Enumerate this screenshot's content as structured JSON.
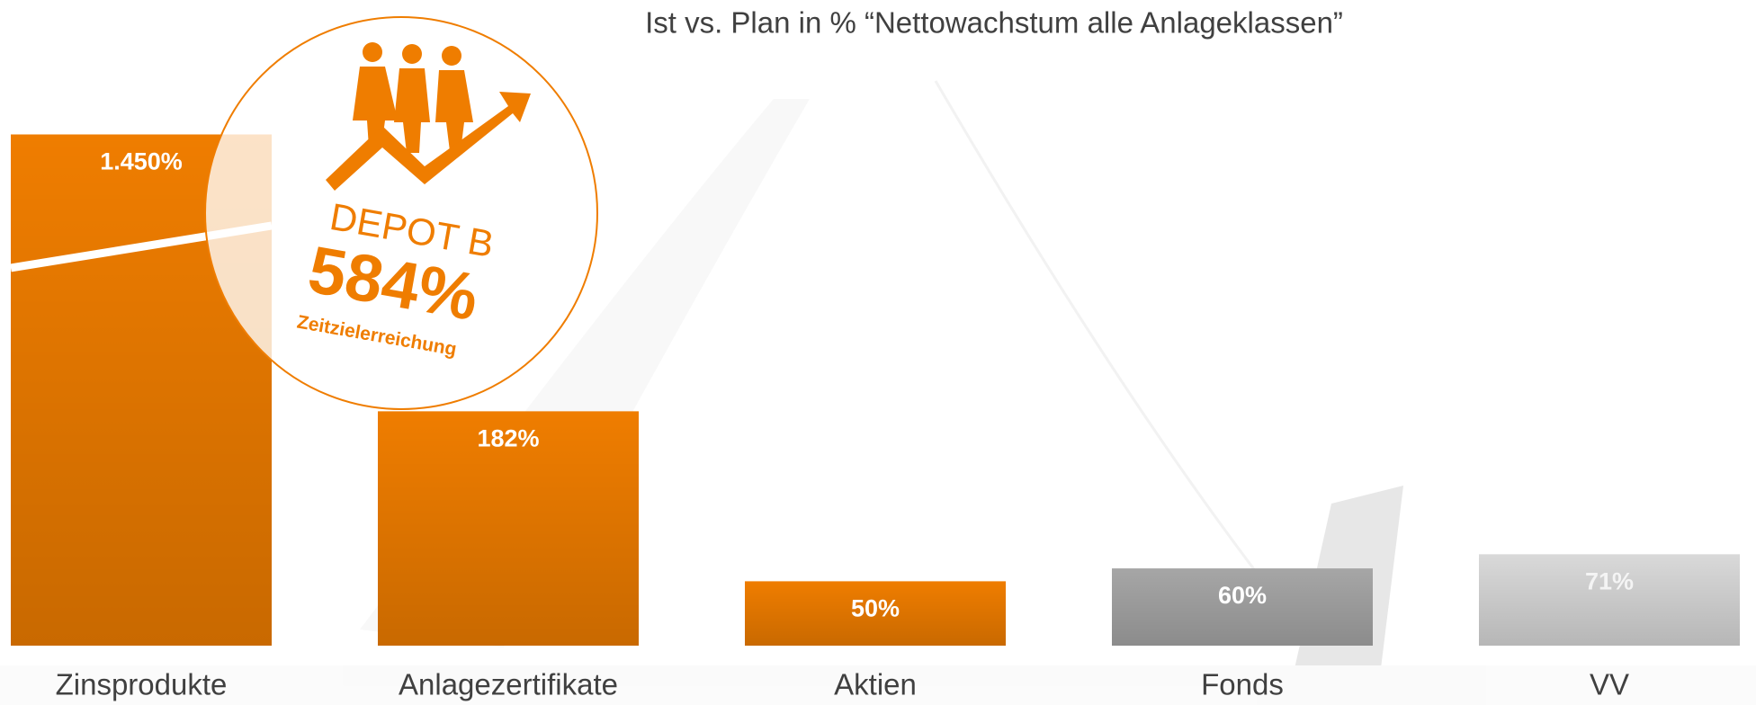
{
  "chart_data": {
    "type": "bar",
    "title": "Ist vs. Plan in % “Nettowachstum alle Anlageklassen”",
    "categories": [
      "Zinsprodukte",
      "Anlagezertifikate",
      "Aktien",
      "Fonds",
      "VV"
    ],
    "values": [
      1450,
      182,
      50,
      60,
      71
    ],
    "value_labels": [
      "1.450%",
      "182%",
      "50%",
      "60%",
      "71%"
    ],
    "colors": [
      "#ef7d00",
      "#ef7d00",
      "#ef7d00",
      "#a6a6a6",
      "#d9d9d9"
    ],
    "badge": {
      "label": "DEPOT B",
      "value_label": "584%",
      "caption": "Zeitzielerreichung"
    }
  }
}
